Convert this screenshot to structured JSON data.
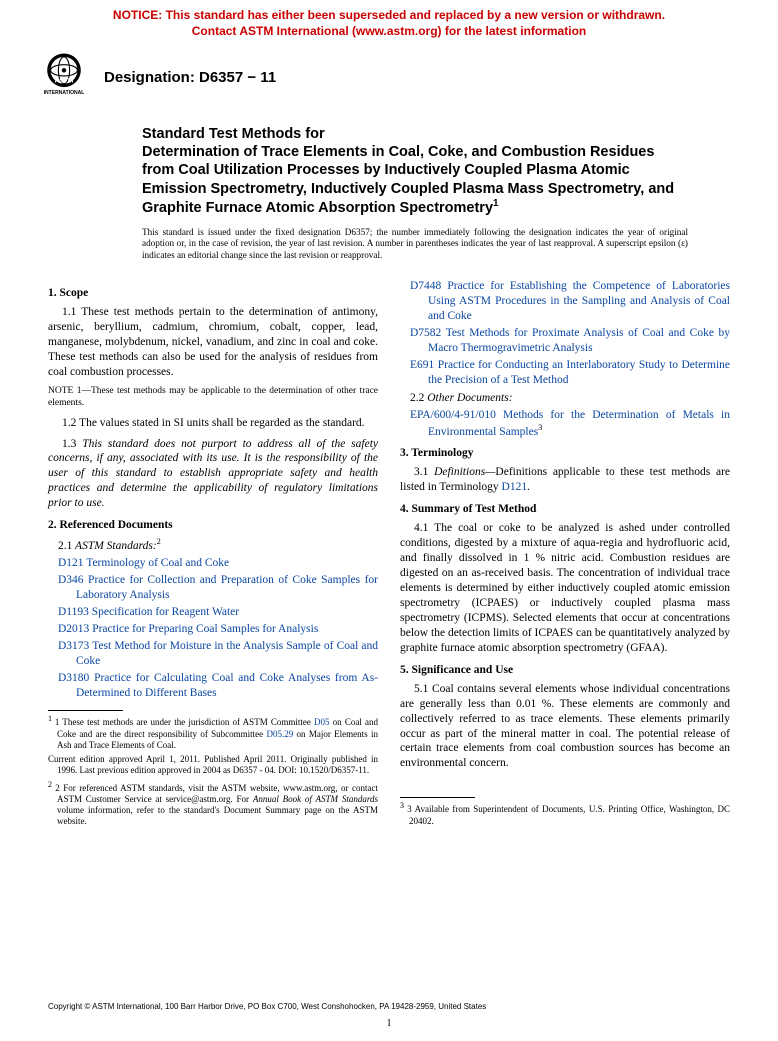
{
  "notice": {
    "line1": "NOTICE: This standard has either been superseded and replaced by a new version or withdrawn.",
    "line2": "Contact ASTM International (www.astm.org) for the latest information"
  },
  "designation": "Designation: D6357 − 11",
  "title": {
    "lead": "Standard Test Methods for",
    "main": "Determination of Trace Elements in Coal, Coke, and Combustion Residues from Coal Utilization Processes by Inductively Coupled Plasma Atomic Emission Spectrometry, Inductively Coupled Plasma Mass Spectrometry, and Graphite Furnace Atomic Absorption Spectrometry",
    "footnote_marker": "1"
  },
  "issuance_note": "This standard is issued under the fixed designation D6357; the number immediately following the designation indicates the year of original adoption or, in the case of revision, the year of last revision. A number in parentheses indicates the year of last reapproval. A superscript epsilon (ε) indicates an editorial change since the last revision or reapproval.",
  "sections": {
    "scope": {
      "head": "1. Scope",
      "p1": "1.1 These test methods pertain to the determination of antimony, arsenic, beryllium, cadmium, chromium, cobalt, copper, lead, manganese, molybdenum, nickel, vanadium, and zinc in coal and coke. These test methods can also be used for the analysis of residues from coal combustion processes.",
      "note1_label": "NOTE 1—",
      "note1": "These test methods may be applicable to the determination of other trace elements.",
      "p2": "1.2 The values stated in SI units shall be regarded as the standard.",
      "p3": "1.3 This standard does not purport to address all of the safety concerns, if any, associated with its use. It is the responsibility of the user of this standard to establish appropriate safety and health practices and determine the applicability of regulatory limitations prior to use."
    },
    "referenced": {
      "head": "2. Referenced Documents",
      "sub1_num": "2.1",
      "sub1": "ASTM Standards:",
      "sub1_fn": "2",
      "items_left": [
        {
          "code": "D121",
          "title": "Terminology of Coal and Coke"
        },
        {
          "code": "D346",
          "title": "Practice for Collection and Preparation of Coke Samples for Laboratory Analysis"
        },
        {
          "code": "D1193",
          "title": "Specification for Reagent Water"
        },
        {
          "code": "D2013",
          "title": "Practice for Preparing Coal Samples for Analysis"
        },
        {
          "code": "D3173",
          "title": "Test Method for Moisture in the Analysis Sample of Coal and Coke"
        },
        {
          "code": "D3180",
          "title": "Practice for Calculating Coal and Coke Analyses from As-Determined to Different Bases"
        }
      ],
      "items_right": [
        {
          "code": "D7448",
          "title": "Practice for Establishing the Competence of Laboratories Using ASTM Procedures in the Sampling and Analysis of Coal and Coke"
        },
        {
          "code": "D7582",
          "title": "Test Methods for Proximate Analysis of Coal and Coke by Macro Thermogravimetric Analysis"
        },
        {
          "code": "E691",
          "title": "Practice for Conducting an Interlaboratory Study to Determine the Precision of a Test Method"
        }
      ],
      "sub2_num": "2.2",
      "sub2": "Other Documents:",
      "items_other": [
        {
          "code": "EPA/600/4-91/010",
          "title": "Methods for the Determination of Metals in Environmental Samples",
          "fn": "3"
        }
      ]
    },
    "terminology": {
      "head": "3. Terminology",
      "p1_pre": "3.1 Definitions—Definitions applicable to these test methods are listed in Terminology ",
      "p1_link": "D121",
      "p1_post": "."
    },
    "summary": {
      "head": "4. Summary of Test Method",
      "p1": "4.1 The coal or coke to be analyzed is ashed under controlled conditions, digested by a mixture of aqua-regia and hydrofluoric acid, and finally dissolved in 1 % nitric acid. Combustion residues are digested on an as-received basis. The concentration of individual trace elements is determined by either inductively coupled atomic emission spectrometry (ICPAES) or inductively coupled plasma mass spectrometry (ICPMS). Selected elements that occur at concentrations below the detection limits of ICPAES can be quantitatively analyzed by graphite furnace atomic absorption spectrometry (GFAA)."
    },
    "significance": {
      "head": "5. Significance and Use",
      "p1": "5.1 Coal contains several elements whose individual concentrations are generally less than 0.01 %. These elements are commonly and collectively referred to as trace elements. These elements primarily occur as part of the mineral matter in coal. The potential release of certain trace elements from coal combustion sources has become an environmental concern."
    }
  },
  "footnotes_left": {
    "f1_pre": "1 These test methods are under the jurisdiction of ASTM Committee ",
    "f1_link1": "D05",
    "f1_mid": " on Coal and Coke and are the direct responsibility of Subcommittee ",
    "f1_link2": "D05.29",
    "f1_post": " on Major Elements in Ash and Trace Elements of Coal.",
    "f1b": "Current edition approved April 1, 2011. Published April 2011. Originally published in 1996. Last previous edition approved in 2004 as D6357 - 04. DOI: 10.1520/D6357-11.",
    "f2_pre": "2 For referenced ASTM standards, visit the ASTM website, www.astm.org, or contact ASTM Customer Service at service@astm.org. For ",
    "f2_ital": "Annual Book of ASTM Standards",
    "f2_post": " volume information, refer to the standard's Document Summary page on the ASTM website."
  },
  "footnotes_right": {
    "f3": "3 Available from Superintendent of Documents, U.S. Printing Office, Washington, DC 20402."
  },
  "copyright": "Copyright © ASTM International, 100 Barr Harbor Drive, PO Box C700, West Conshohocken, PA 19428-2959, United States",
  "page_number": "1"
}
